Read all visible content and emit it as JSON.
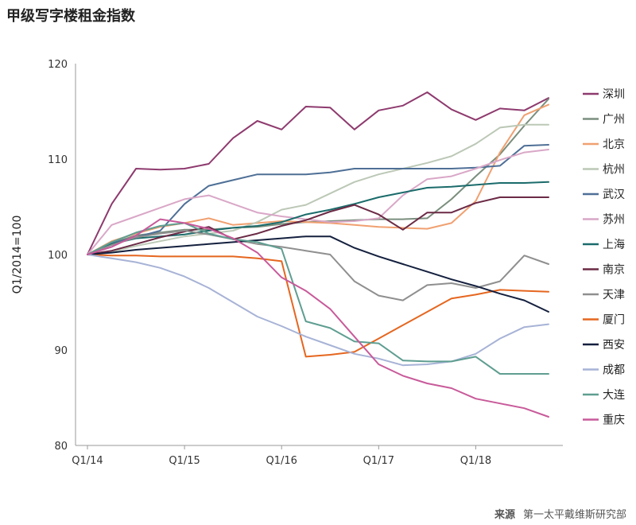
{
  "header": {
    "title": "甲级写字楼租金指数"
  },
  "footer": {
    "source_label": "来源",
    "source_text": "第一太平戴维斯研究部"
  },
  "chart_data": {
    "type": "line",
    "title": "甲级写字楼租金指数",
    "xlabel": "",
    "ylabel": "Q1/2014=100",
    "x": [
      "Q1/14",
      "Q2/14",
      "Q3/14",
      "Q4/14",
      "Q1/15",
      "Q2/15",
      "Q3/15",
      "Q4/15",
      "Q1/16",
      "Q2/16",
      "Q3/16",
      "Q4/16",
      "Q1/17",
      "Q2/17",
      "Q3/17",
      "Q4/17",
      "Q1/18",
      "Q2/18",
      "Q3/18",
      "Q4/18"
    ],
    "x_ticks": [
      "Q1/14",
      "Q1/15",
      "Q1/16",
      "Q1/17",
      "Q1/18"
    ],
    "ylim": [
      80,
      120
    ],
    "y_ticks": [
      80,
      90,
      100,
      110,
      120
    ],
    "grid": false,
    "legend_position": "right",
    "series": [
      {
        "name": "深圳",
        "color": "#8e3a6e",
        "values": [
          100,
          105.3,
          109,
          108.9,
          109,
          109.5,
          112.2,
          114,
          113.1,
          115.5,
          115.4,
          113.1,
          115.1,
          115.6,
          117,
          115.2,
          114.1,
          115.3,
          115.1,
          116.4
        ]
      },
      {
        "name": "广州",
        "color": "#7a8e7d",
        "values": [
          100,
          101.2,
          102,
          102.3,
          102.6,
          102.6,
          102.8,
          102.9,
          103.2,
          103.4,
          103.5,
          103.6,
          103.7,
          103.7,
          103.8,
          105.8,
          108.2,
          110.5,
          113.5,
          116.3
        ]
      },
      {
        "name": "北京",
        "color": "#f0a070",
        "values": [
          100,
          101.4,
          102.2,
          102.9,
          103.3,
          103.8,
          103.1,
          103.3,
          103.5,
          103.4,
          103.3,
          103.1,
          102.9,
          102.8,
          102.7,
          103.3,
          105.6,
          110.7,
          114.6,
          115.7
        ]
      },
      {
        "name": "杭州",
        "color": "#bcc8b6",
        "values": [
          100,
          100.3,
          100.9,
          101.4,
          101.9,
          102.2,
          102.5,
          103.4,
          104.7,
          105.2,
          106.4,
          107.6,
          108.4,
          109,
          109.6,
          110.3,
          111.6,
          113.3,
          113.6,
          113.6
        ]
      },
      {
        "name": "武汉",
        "color": "#4e6f96",
        "values": [
          100,
          101.2,
          101.8,
          102.5,
          105.3,
          107.2,
          107.8,
          108.4,
          108.4,
          108.4,
          108.6,
          109,
          109,
          109,
          109,
          109,
          109.1,
          109.3,
          111.4,
          111.5
        ]
      },
      {
        "name": "苏州",
        "color": "#d9a7c7",
        "values": [
          100,
          103.1,
          104,
          104.9,
          105.8,
          106.2,
          105.3,
          104.4,
          104,
          103.7,
          103.4,
          103.5,
          103.8,
          106.2,
          107.9,
          108.2,
          109,
          109.9,
          110.7,
          111
        ]
      },
      {
        "name": "上海",
        "color": "#1b6b6b",
        "values": [
          100,
          101.1,
          101.7,
          101.9,
          102.1,
          102.5,
          102.8,
          103,
          103.4,
          104.2,
          104.7,
          105.3,
          106,
          106.5,
          107,
          107.1,
          107.3,
          107.5,
          107.5,
          107.6
        ]
      },
      {
        "name": "南京",
        "color": "#6b2a45",
        "values": [
          100,
          100.4,
          101.1,
          101.8,
          102.4,
          102.9,
          101.6,
          102.2,
          103,
          103.6,
          104.5,
          105.2,
          104.2,
          102.6,
          104.4,
          104.4,
          105.4,
          106,
          106,
          106
        ]
      },
      {
        "name": "天津",
        "color": "#8f8f8f",
        "values": [
          100,
          101,
          101.8,
          102.2,
          102.5,
          102.1,
          101.6,
          101.1,
          100.8,
          100.4,
          100,
          97.2,
          95.7,
          95.2,
          96.8,
          97,
          96.5,
          97.2,
          99.9,
          99
        ]
      },
      {
        "name": "厦门",
        "color": "#e5661f",
        "values": [
          100,
          99.9,
          99.9,
          99.8,
          99.8,
          99.8,
          99.8,
          99.6,
          99.3,
          89.3,
          89.5,
          89.8,
          91.2,
          92.6,
          94,
          95.4,
          95.8,
          96.3,
          96.2,
          96.1
        ]
      },
      {
        "name": "西安",
        "color": "#14203e",
        "values": [
          100,
          100.2,
          100.5,
          100.7,
          100.9,
          101.1,
          101.3,
          101.5,
          101.7,
          101.9,
          101.9,
          100.7,
          99.8,
          99,
          98.2,
          97.4,
          96.7,
          95.9,
          95.2,
          94
        ]
      },
      {
        "name": "成都",
        "color": "#a7b3d6",
        "values": [
          100,
          99.6,
          99.2,
          98.6,
          97.7,
          96.5,
          95,
          93.5,
          92.5,
          91.4,
          90.5,
          89.6,
          89.1,
          88.4,
          88.5,
          88.8,
          89.6,
          91.2,
          92.4,
          92.7
        ]
      },
      {
        "name": "大连",
        "color": "#5f9e91",
        "values": [
          100,
          101.3,
          102.3,
          103,
          103.3,
          102.2,
          101.6,
          101.3,
          100.6,
          93,
          92.3,
          90.9,
          90.7,
          88.9,
          88.8,
          88.8,
          89.3,
          87.5,
          87.5,
          87.5
        ]
      },
      {
        "name": "重庆",
        "color": "#c85a9a",
        "values": [
          100,
          100.8,
          102,
          103.7,
          103.3,
          102.7,
          101.7,
          100.2,
          97.6,
          96.2,
          94.3,
          91.4,
          88.5,
          87.3,
          86.5,
          86,
          84.9,
          84.4,
          83.9,
          83
        ]
      }
    ]
  }
}
